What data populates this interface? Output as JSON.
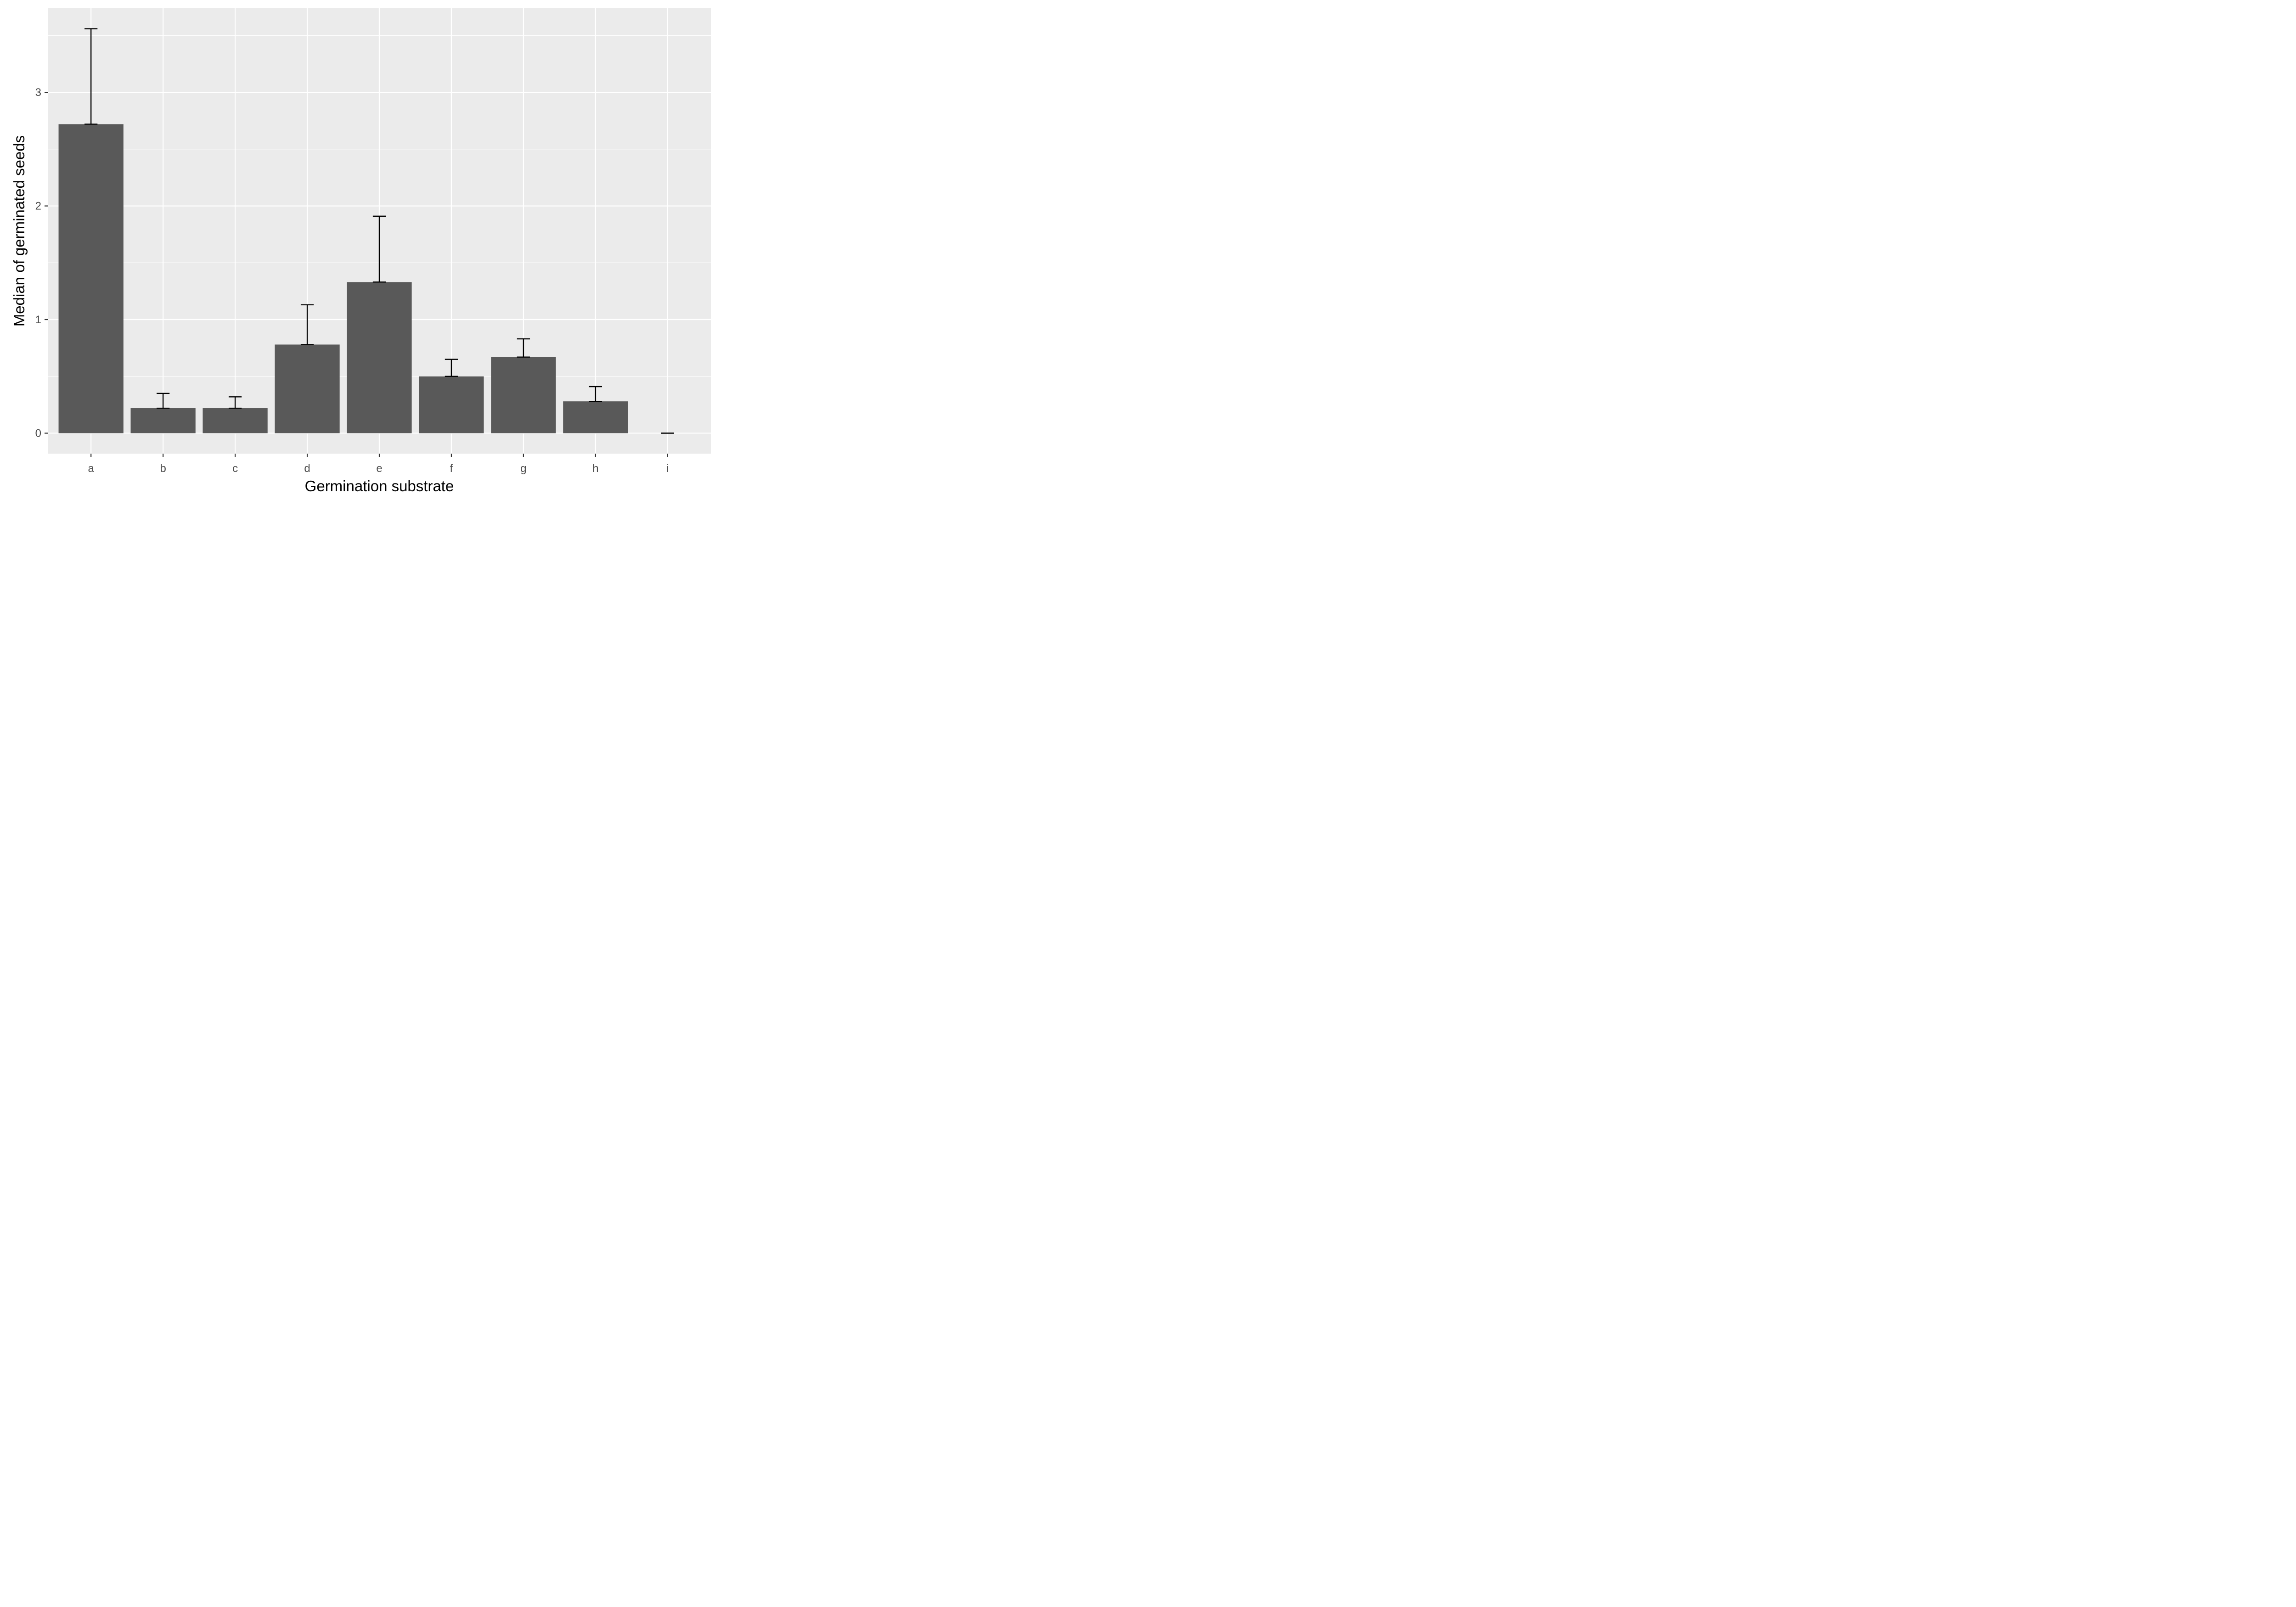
{
  "chart_data": {
    "type": "bar",
    "title": "",
    "xlabel": "Germination substrate",
    "ylabel": "Median of germinated seeds",
    "categories": [
      "a",
      "b",
      "c",
      "d",
      "e",
      "f",
      "g",
      "h",
      "i"
    ],
    "values": [
      2.72,
      0.22,
      0.22,
      0.78,
      1.33,
      0.5,
      0.67,
      0.28,
      0.0
    ],
    "error_upper": [
      3.56,
      0.35,
      0.32,
      1.13,
      1.91,
      0.65,
      0.83,
      0.41,
      0.0
    ],
    "ylim": [
      -0.18,
      3.74
    ],
    "yticks": [
      0,
      1,
      2,
      3
    ],
    "ytick_labels": [
      "0",
      "1",
      "2",
      "3"
    ],
    "grid": true,
    "legend": "none",
    "colors": {
      "bar": "#595959",
      "panel": "#ebebeb",
      "grid": "#ffffff",
      "error_bar": "#000000"
    }
  }
}
